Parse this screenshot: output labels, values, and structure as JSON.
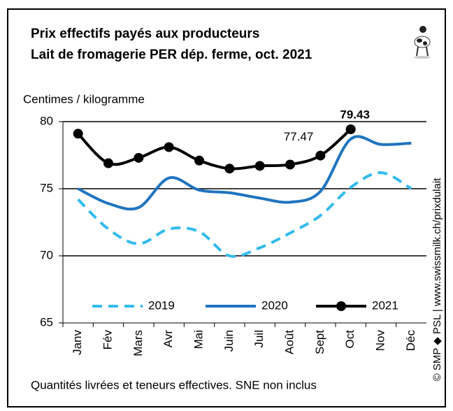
{
  "chart_data": {
    "type": "line",
    "title": "Prix effectifs payés aux producteurs",
    "subtitle": "Lait de fromagerie PER dép. ferme, oct. 2021",
    "y_label": "Centimes / kilogramme",
    "note": "Quantités livrées et teneurs effectives. SNE non inclus",
    "source": "© SMP ◆ PSL | www.swissmilk.ch/prixdulait",
    "categories": [
      "Janv",
      "Fév",
      "Mars",
      "Avr",
      "Mai",
      "Juin",
      "Juil",
      "Août",
      "Sept",
      "Oct",
      "Nov",
      "Déc"
    ],
    "series": [
      {
        "name": "2019",
        "color": "#33bbee",
        "dashed": true,
        "markers": false,
        "values": [
          74.2,
          72.0,
          70.9,
          72.0,
          71.8,
          70.0,
          70.6,
          71.7,
          73.0,
          75.1,
          76.2,
          75.0
        ]
      },
      {
        "name": "2020",
        "color": "#1f74c0",
        "dashed": false,
        "markers": false,
        "values": [
          75.0,
          73.9,
          73.6,
          75.8,
          74.9,
          74.7,
          74.3,
          74.0,
          74.8,
          78.7,
          78.3,
          78.4
        ]
      },
      {
        "name": "2021",
        "color": "#000000",
        "dashed": false,
        "markers": true,
        "values": [
          79.1,
          76.9,
          77.3,
          78.1,
          77.1,
          76.5,
          76.7,
          76.8,
          77.47,
          79.43,
          null,
          null
        ],
        "value_labels": [
          null,
          null,
          null,
          null,
          null,
          null,
          null,
          null,
          "77.47",
          "79.43",
          null,
          null
        ]
      }
    ],
    "ylim": [
      65,
      80
    ],
    "yticks": [
      65,
      70,
      75,
      80
    ],
    "grid": true,
    "legend": "bottom"
  }
}
